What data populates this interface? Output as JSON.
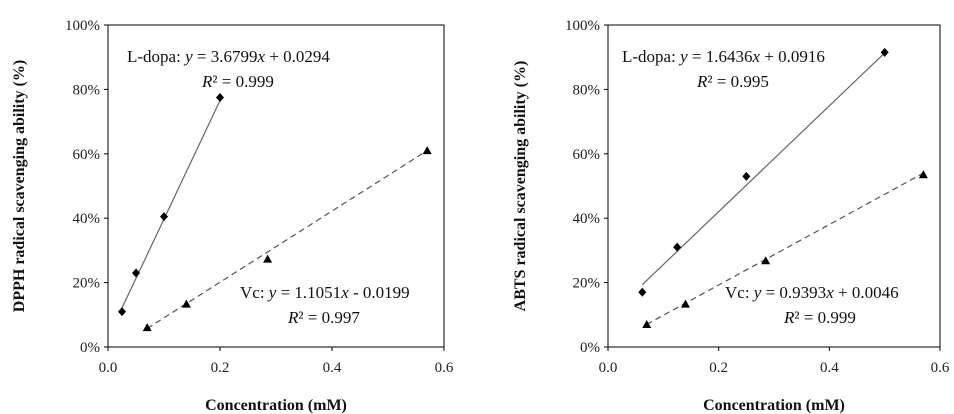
{
  "chart_data": [
    {
      "type": "scatter",
      "xlabel": "Concentration (mM)",
      "ylabel": "DPPH radical scavenging ability (%)",
      "xlim": [
        0,
        0.6
      ],
      "ylim": [
        0,
        100
      ],
      "x_ticks": [
        "0.0",
        "0.2",
        "0.4",
        "0.6"
      ],
      "y_ticks": [
        "0%",
        "20%",
        "40%",
        "60%",
        "80%",
        "100%"
      ],
      "series": [
        {
          "marker": "diamond",
          "line_style": "solid",
          "x": [
            0.025,
            0.05,
            0.1,
            0.2
          ],
          "y": [
            11,
            23,
            40.5,
            77.5
          ],
          "fit": {
            "slope": 3.6799,
            "intercept": 0.0294
          },
          "equation_prefix": "L-dopa: ",
          "equation_body": "= 3.6799x + 0.0294",
          "r2": "R² = 0.999"
        },
        {
          "marker": "triangle",
          "line_style": "dashed",
          "x": [
            0.07,
            0.14,
            0.285,
            0.57
          ],
          "y": [
            6,
            13.3,
            27.3,
            61
          ],
          "fit": {
            "slope": 1.1051,
            "intercept": -0.0199
          },
          "equation_prefix": "Vc: ",
          "equation_body": "= 1.1051x - 0.0199",
          "r2": "R² = 0.997"
        }
      ]
    },
    {
      "type": "scatter",
      "xlabel": "Concentration (mM)",
      "ylabel": "ABTS radical scavenging ability (%)",
      "xlim": [
        0,
        0.6
      ],
      "ylim": [
        0,
        100
      ],
      "x_ticks": [
        "0.0",
        "0.2",
        "0.4",
        "0.6"
      ],
      "y_ticks": [
        "0%",
        "20%",
        "40%",
        "60%",
        "80%",
        "100%"
      ],
      "series": [
        {
          "marker": "diamond",
          "line_style": "solid",
          "x": [
            0.062,
            0.125,
            0.25,
            0.5
          ],
          "y": [
            17,
            31,
            53,
            91.5
          ],
          "fit": {
            "slope": 1.6436,
            "intercept": 0.0916
          },
          "equation_prefix": "L-dopa: ",
          "equation_body": "= 1.6436x + 0.0916",
          "r2": "R² = 0.995"
        },
        {
          "marker": "triangle",
          "line_style": "dashed",
          "x": [
            0.07,
            0.14,
            0.285,
            0.57
          ],
          "y": [
            7,
            13.3,
            26.8,
            53.5
          ],
          "fit": {
            "slope": 0.9393,
            "intercept": 0.0046
          },
          "equation_prefix": "Vc: ",
          "equation_body": "= 0.9393x + 0.0046",
          "r2": "R² = 0.999"
        }
      ]
    }
  ]
}
